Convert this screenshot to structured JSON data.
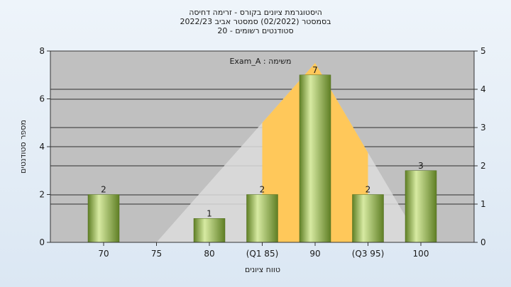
{
  "chart_data": {
    "type": "bar",
    "title_lines": [
      "היסטוגרמת ציונים בקורס - זרימה דחיסה",
      "בסמסטר  (02/2022)  סמסטר אביב 2022/23",
      "סטודנטים רשומים - 20"
    ],
    "categories": [
      "70",
      "75",
      "80",
      "(Q1 85)",
      "90",
      "(Q3 95)",
      "100"
    ],
    "values": [
      2,
      0,
      1,
      2,
      7,
      2,
      3
    ],
    "data_labels": [
      "2",
      "",
      "1",
      "2",
      "7",
      "2",
      "3"
    ],
    "xlabel": "טווח ציונים",
    "ylabel": "מספר סטודנטים",
    "ylim": [
      0,
      8
    ],
    "yticks": [
      "0",
      "2",
      "4",
      "6",
      "8"
    ],
    "y2lim": [
      0,
      5
    ],
    "y2ticks": [
      "0",
      "1",
      "2",
      "3",
      "4",
      "5"
    ],
    "annotation": "משימה : Exam_A",
    "normal_curve": {
      "outer_x": [
        75,
        100
      ],
      "inner_x": [
        85,
        95
      ],
      "peak_x": 90,
      "peak_y": 7.5
    },
    "grid": true,
    "colors": {
      "plot_bg": "#c0c0c0",
      "bar_light": "#d7eaa2",
      "bar_mid": "#9fbf55",
      "bar_dark": "#5f7f25",
      "inner_area": "#ffc85a",
      "outer_area": "#dcdcdc",
      "grid": "#000000"
    }
  }
}
